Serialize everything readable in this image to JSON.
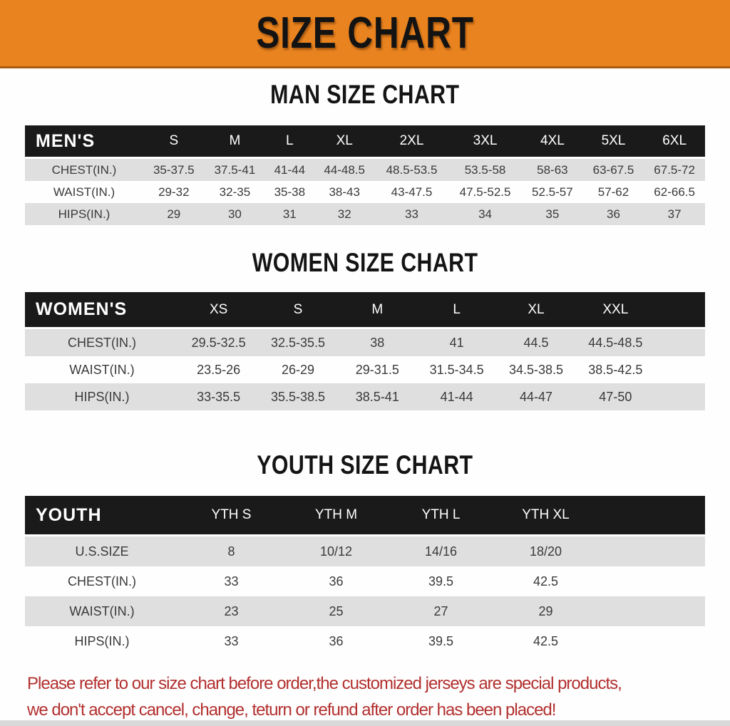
{
  "banner": {
    "title": "SIZE CHART"
  },
  "colors": {
    "banner_orange": "#e8831f",
    "banner_border": "#a85c10",
    "header_bar_black": "#1a1a1a",
    "row_stripe_gray": "#dfdfdf",
    "table_text": "#3a3a3a",
    "note_red": "#b2302f"
  },
  "sections": [
    {
      "title": "MAN SIZE CHART",
      "table": {
        "group_label": "MEN'S",
        "sizes": [
          "S",
          "M",
          "L",
          "XL",
          "2XL",
          "3XL",
          "4XL",
          "5XL",
          "6XL"
        ],
        "rows": [
          {
            "label": "CHEST(IN.)",
            "values": [
              "35-37.5",
              "37.5-41",
              "41-44",
              "44-48.5",
              "48.5-53.5",
              "53.5-58",
              "58-63",
              "63-67.5",
              "67.5-72"
            ]
          },
          {
            "label": "WAIST(IN.)",
            "values": [
              "29-32",
              "32-35",
              "35-38",
              "38-43",
              "43-47.5",
              "47.5-52.5",
              "52.5-57",
              "57-62",
              "62-66.5"
            ]
          },
          {
            "label": "HIPS(IN.)",
            "values": [
              "29",
              "30",
              "31",
              "32",
              "33",
              "34",
              "35",
              "36",
              "37"
            ]
          }
        ]
      }
    },
    {
      "title": "WOMEN SIZE CHART",
      "table": {
        "group_label": "WOMEN'S",
        "sizes": [
          "XS",
          "S",
          "M",
          "L",
          "XL",
          "XXL"
        ],
        "rows": [
          {
            "label": "CHEST(IN.)",
            "values": [
              "29.5-32.5",
              "32.5-35.5",
              "38",
              "41",
              "44.5",
              "44.5-48.5"
            ]
          },
          {
            "label": "WAIST(IN.)",
            "values": [
              "23.5-26",
              "26-29",
              "29-31.5",
              "31.5-34.5",
              "34.5-38.5",
              "38.5-42.5"
            ]
          },
          {
            "label": "HIPS(IN.)",
            "values": [
              "33-35.5",
              "35.5-38.5",
              "38.5-41",
              "41-44",
              "44-47",
              "47-50"
            ]
          }
        ]
      }
    },
    {
      "title": "YOUTH SIZE CHART",
      "table": {
        "group_label": "YOUTH",
        "sizes": [
          "YTH S",
          "YTH M",
          "YTH L",
          "YTH XL"
        ],
        "rows": [
          {
            "label": "U.S.SIZE",
            "values": [
              "8",
              "10/12",
              "14/16",
              "18/20"
            ]
          },
          {
            "label": "CHEST(IN.)",
            "values": [
              "33",
              "36",
              "39.5",
              "42.5"
            ]
          },
          {
            "label": "WAIST(IN.)",
            "values": [
              "23",
              "25",
              "27",
              "29"
            ]
          },
          {
            "label": "HIPS(IN.)",
            "values": [
              "33",
              "36",
              "39.5",
              "42.5"
            ]
          }
        ]
      }
    }
  ],
  "note": {
    "lines": [
      "Please refer to our size chart before order,the customized jerseys are special products,",
      "we don't accept cancel, change, teturn or refund after order has been placed!"
    ]
  }
}
